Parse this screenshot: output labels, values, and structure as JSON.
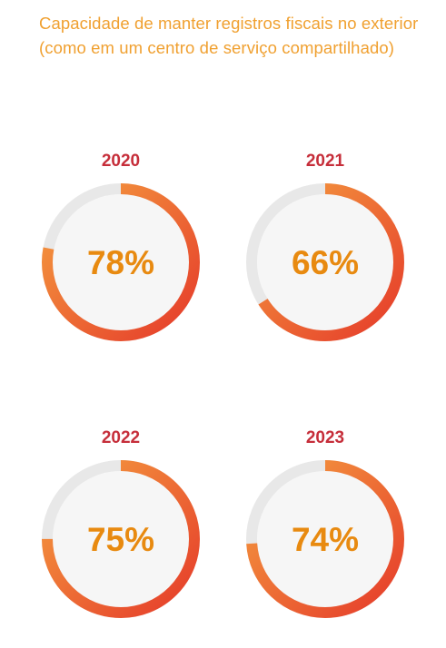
{
  "title": "Capacidade de manter registros fiscais no exterior (como em um centro de serviço compartilhado)",
  "colors": {
    "title": "#F0A030",
    "year": "#C62E3A",
    "value": "#E88A10",
    "track": "#E8E8E8",
    "inner": "#F6F6F6",
    "gradient_start": "#F5A040",
    "gradient_end": "#E53A2A"
  },
  "chart_data": [
    {
      "type": "pie",
      "year": "2020",
      "value": 78,
      "label": "78%"
    },
    {
      "type": "pie",
      "year": "2021",
      "value": 66,
      "label": "66%"
    },
    {
      "type": "pie",
      "year": "2022",
      "value": 75,
      "label": "75%"
    },
    {
      "type": "pie",
      "year": "2023",
      "value": 74,
      "label": "74%"
    }
  ]
}
